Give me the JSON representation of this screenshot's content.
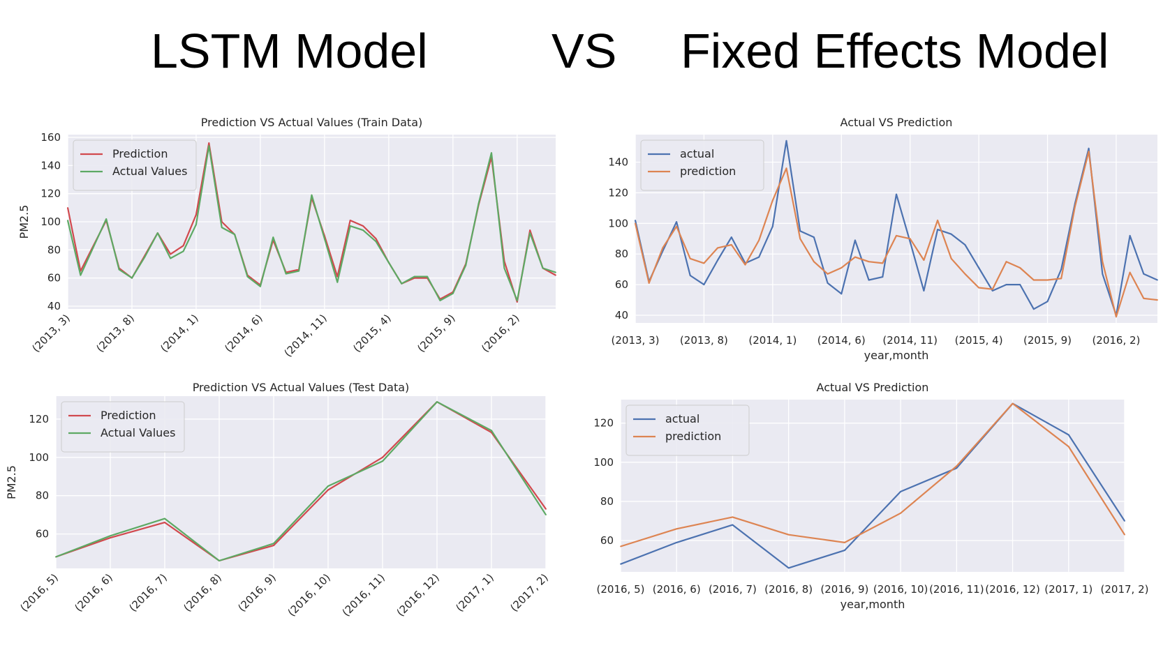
{
  "headline": {
    "left": "LSTM Model",
    "middle": "VS",
    "right": "Fixed Effects Model"
  },
  "colors": {
    "plot_bg": "#eaeaf2",
    "grid": "#ffffff",
    "red": "#d1494e",
    "green": "#5da964",
    "blue": "#4c72b0",
    "orange": "#dd8452"
  },
  "chart_data": [
    {
      "id": "lstm-train",
      "type": "line",
      "title": "Prediction VS Actual Values (Train Data)",
      "xlabel": "",
      "ylabel": "PM2.5",
      "ylim": [
        38,
        162
      ],
      "yticks": [
        40,
        60,
        80,
        100,
        120,
        140,
        160
      ],
      "xtick_labels": [
        "(2013, 3)",
        "(2013, 8)",
        "(2014, 1)",
        "(2014, 6)",
        "(2014, 11)",
        "(2015, 4)",
        "(2015, 9)",
        "(2016, 2)"
      ],
      "xtick_index": [
        0,
        5,
        10,
        15,
        20,
        25,
        30,
        35
      ],
      "x_count": 39,
      "grid": true,
      "legend_position": "upper left",
      "series": [
        {
          "name": "Prediction",
          "color": "red",
          "values": [
            110,
            65,
            83,
            101,
            67,
            60,
            76,
            92,
            77,
            83,
            105,
            156,
            100,
            91,
            62,
            55,
            87,
            64,
            66,
            117,
            90,
            61,
            101,
            97,
            88,
            71,
            56,
            60,
            60,
            45,
            50,
            70,
            112,
            146,
            72,
            43,
            94,
            67,
            62
          ]
        },
        {
          "name": "Actual Values",
          "color": "green",
          "values": [
            101,
            62,
            82,
            102,
            66,
            60,
            75,
            92,
            74,
            79,
            98,
            154,
            96,
            91,
            61,
            54,
            89,
            63,
            65,
            119,
            88,
            57,
            97,
            94,
            86,
            71,
            56,
            61,
            61,
            44,
            49,
            69,
            113,
            149,
            67,
            44,
            92,
            67,
            64
          ]
        }
      ]
    },
    {
      "id": "fe-train",
      "type": "line",
      "title": "Actual VS Prediction",
      "xlabel": "year,month",
      "ylabel": "",
      "ylim": [
        35,
        158
      ],
      "yticks": [
        40,
        60,
        80,
        100,
        120,
        140
      ],
      "xtick_labels": [
        "(2013, 3)",
        "(2013, 8)",
        "(2014, 1)",
        "(2014, 6)",
        "(2014, 11)",
        "(2015, 4)",
        "(2015, 9)",
        "(2016, 2)"
      ],
      "xtick_index": [
        0,
        5,
        10,
        15,
        20,
        25,
        30,
        35
      ],
      "x_count": 39,
      "grid": true,
      "legend_position": "upper left",
      "series": [
        {
          "name": "actual",
          "color": "blue",
          "values": [
            102,
            62,
            82,
            101,
            66,
            60,
            76,
            91,
            74,
            78,
            98,
            154,
            95,
            91,
            61,
            54,
            89,
            63,
            65,
            119,
            88,
            56,
            96,
            93,
            86,
            71,
            56,
            60,
            60,
            44,
            49,
            70,
            113,
            149,
            67,
            40,
            92,
            67,
            63
          ]
        },
        {
          "name": "prediction",
          "color": "orange",
          "values": [
            100,
            61,
            84,
            98,
            77,
            74,
            84,
            86,
            73,
            89,
            115,
            136,
            90,
            75,
            67,
            71,
            78,
            75,
            74,
            92,
            90,
            76,
            102,
            77,
            67,
            58,
            57,
            75,
            71,
            63,
            63,
            64,
            111,
            147,
            75,
            39,
            68,
            51,
            50
          ]
        }
      ]
    },
    {
      "id": "lstm-test",
      "type": "line",
      "title": "Prediction VS Actual Values (Test Data)",
      "xlabel": "",
      "ylabel": "PM2.5",
      "ylim": [
        42,
        132
      ],
      "yticks": [
        60,
        80,
        100,
        120
      ],
      "xtick_labels": [
        "(2016, 5)",
        "(2016, 6)",
        "(2016, 7)",
        "(2016, 8)",
        "(2016, 9)",
        "(2016, 10)",
        "(2016, 11)",
        "(2016, 12)",
        "(2017, 1)",
        "(2017, 2)"
      ],
      "xtick_index": [
        0,
        1,
        2,
        3,
        4,
        5,
        6,
        7,
        8,
        9
      ],
      "x_count": 10,
      "grid": true,
      "legend_position": "upper left",
      "series": [
        {
          "name": "Prediction",
          "color": "red",
          "values": [
            48,
            58,
            66,
            46,
            54,
            83,
            100,
            129,
            113,
            73
          ]
        },
        {
          "name": "Actual Values",
          "color": "green",
          "values": [
            48,
            59,
            68,
            46,
            55,
            85,
            98,
            129,
            114,
            70
          ]
        }
      ]
    },
    {
      "id": "fe-test",
      "type": "line",
      "title": "Actual VS Prediction",
      "xlabel": "year,month",
      "ylabel": "",
      "ylim": [
        44,
        132
      ],
      "yticks": [
        60,
        80,
        100,
        120
      ],
      "xtick_labels": [
        "(2016, 5)",
        "(2016, 6)",
        "(2016, 7)",
        "(2016, 8)",
        "(2016, 9)",
        "(2016, 10)",
        "(2016, 11)",
        "(2016, 12)",
        "(2017, 1)",
        "(2017, 2)"
      ],
      "xtick_index": [
        0,
        1,
        2,
        3,
        4,
        5,
        6,
        7,
        8,
        9
      ],
      "x_count": 10,
      "grid": true,
      "legend_position": "upper left",
      "series": [
        {
          "name": "actual",
          "color": "blue",
          "values": [
            48,
            59,
            68,
            46,
            55,
            85,
            97,
            130,
            114,
            70
          ]
        },
        {
          "name": "prediction",
          "color": "orange",
          "values": [
            57,
            66,
            72,
            63,
            59,
            74,
            98,
            130,
            108,
            63
          ]
        }
      ]
    }
  ]
}
